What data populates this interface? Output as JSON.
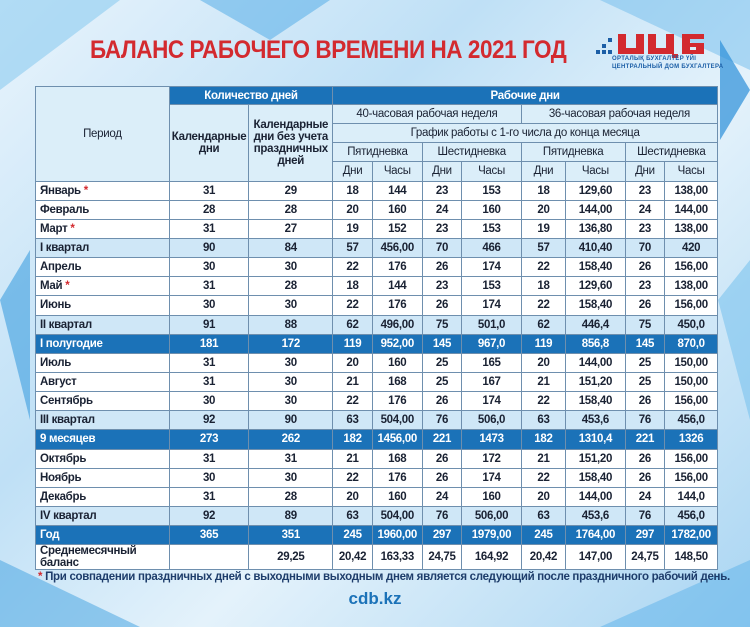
{
  "title": "БАЛАНС РАБОЧЕГО ВРЕМЕНИ НА 2021 ГОД",
  "logo": {
    "text": "ЦДБ",
    "line1": "ОРТАЛЫҚ БУХГАЛТЕР ҮЙІ",
    "line2": "ЦЕНТРАЛЬНЫЙ ДОМ БУХГАЛТЕРА"
  },
  "header": {
    "period": "Период",
    "days_count": "Количество дней",
    "work_days": "Рабочие дни",
    "calendar": "Календарные дни",
    "calendar_no_holidays": "Календарные дни без учета праздничных дней",
    "week40": "40-часовая рабочая неделя",
    "week36": "36-часовая рабочая неделя",
    "schedule": "График работы с 1-го числа до конца месяца",
    "five_day": "Пятидневка",
    "six_day": "Шестидневка",
    "days": "Дни",
    "hours": "Часы"
  },
  "rows": [
    {
      "type": "m",
      "period": "Январь",
      "star": "*",
      "v": [
        "31",
        "29",
        "18",
        "144",
        "23",
        "153",
        "18",
        "129,60",
        "23",
        "138,00"
      ]
    },
    {
      "type": "m",
      "period": "Февраль",
      "star": "",
      "v": [
        "28",
        "28",
        "20",
        "160",
        "24",
        "160",
        "20",
        "144,00",
        "24",
        "144,00"
      ]
    },
    {
      "type": "m",
      "period": "Март",
      "star": "*",
      "v": [
        "31",
        "27",
        "19",
        "152",
        "23",
        "153",
        "19",
        "136,80",
        "23",
        "138,00"
      ]
    },
    {
      "type": "q",
      "period": "I квартал",
      "star": "",
      "v": [
        "90",
        "84",
        "57",
        "456,00",
        "70",
        "466",
        "57",
        "410,40",
        "70",
        "420"
      ]
    },
    {
      "type": "m",
      "period": "Апрель",
      "star": "",
      "v": [
        "30",
        "30",
        "22",
        "176",
        "26",
        "174",
        "22",
        "158,40",
        "26",
        "156,00"
      ]
    },
    {
      "type": "m",
      "period": "Май",
      "star": "*",
      "v": [
        "31",
        "28",
        "18",
        "144",
        "23",
        "153",
        "18",
        "129,60",
        "23",
        "138,00"
      ]
    },
    {
      "type": "m",
      "period": "Июнь",
      "star": "",
      "v": [
        "30",
        "30",
        "22",
        "176",
        "26",
        "174",
        "22",
        "158,40",
        "26",
        "156,00"
      ]
    },
    {
      "type": "q",
      "period": "II квартал",
      "star": "",
      "v": [
        "91",
        "88",
        "62",
        "496,00",
        "75",
        "501,0",
        "62",
        "446,4",
        "75",
        "450,0"
      ]
    },
    {
      "type": "h",
      "period": "I полугодие",
      "star": "",
      "v": [
        "181",
        "172",
        "119",
        "952,00",
        "145",
        "967,0",
        "119",
        "856,8",
        "145",
        "870,0"
      ]
    },
    {
      "type": "m",
      "period": "Июль",
      "star": "",
      "v": [
        "31",
        "30",
        "20",
        "160",
        "25",
        "165",
        "20",
        "144,00",
        "25",
        "150,00"
      ]
    },
    {
      "type": "m",
      "period": "Август",
      "star": "",
      "v": [
        "31",
        "30",
        "21",
        "168",
        "25",
        "167",
        "21",
        "151,20",
        "25",
        "150,00"
      ]
    },
    {
      "type": "m",
      "period": "Сентябрь",
      "star": "",
      "v": [
        "30",
        "30",
        "22",
        "176",
        "26",
        "174",
        "22",
        "158,40",
        "26",
        "156,00"
      ]
    },
    {
      "type": "q",
      "period": "III квартал",
      "star": "",
      "v": [
        "92",
        "90",
        "63",
        "504,00",
        "76",
        "506,0",
        "63",
        "453,6",
        "76",
        "456,0"
      ]
    },
    {
      "type": "h",
      "period": "9 месяцев",
      "star": "",
      "v": [
        "273",
        "262",
        "182",
        "1456,00",
        "221",
        "1473",
        "182",
        "1310,4",
        "221",
        "1326"
      ]
    },
    {
      "type": "m",
      "period": "Октябрь",
      "star": "",
      "v": [
        "31",
        "31",
        "21",
        "168",
        "26",
        "172",
        "21",
        "151,20",
        "26",
        "156,00"
      ]
    },
    {
      "type": "m",
      "period": "Ноябрь",
      "star": "",
      "v": [
        "30",
        "30",
        "22",
        "176",
        "26",
        "174",
        "22",
        "158,40",
        "26",
        "156,00"
      ]
    },
    {
      "type": "m",
      "period": "Декабрь",
      "star": "",
      "v": [
        "31",
        "28",
        "20",
        "160",
        "24",
        "160",
        "20",
        "144,00",
        "24",
        "144,0"
      ]
    },
    {
      "type": "q",
      "period": "IV квартал",
      "star": "",
      "v": [
        "92",
        "89",
        "63",
        "504,00",
        "76",
        "506,00",
        "63",
        "453,6",
        "76",
        "456,0"
      ]
    },
    {
      "type": "h",
      "period": "Год",
      "star": "",
      "v": [
        "365",
        "351",
        "245",
        "1960,00",
        "297",
        "1979,00",
        "245",
        "1764,00",
        "297",
        "1782,00"
      ]
    },
    {
      "type": "m",
      "period": "Среднемесячный баланс",
      "star": "",
      "v": [
        "",
        "29,25",
        "20,42",
        "163,33",
        "24,75",
        "164,92",
        "20,42",
        "147,00",
        "24,75",
        "148,50"
      ]
    }
  ],
  "note": {
    "star": "*",
    "text": " При совпадении праздничных дней с выходными выходным днем является следующий после праздничного рабочий день."
  },
  "site": "cdb.kz",
  "colors": {
    "title": "#d32a2f",
    "header": "#1b72b8",
    "quarter": "#cfe7f7"
  }
}
